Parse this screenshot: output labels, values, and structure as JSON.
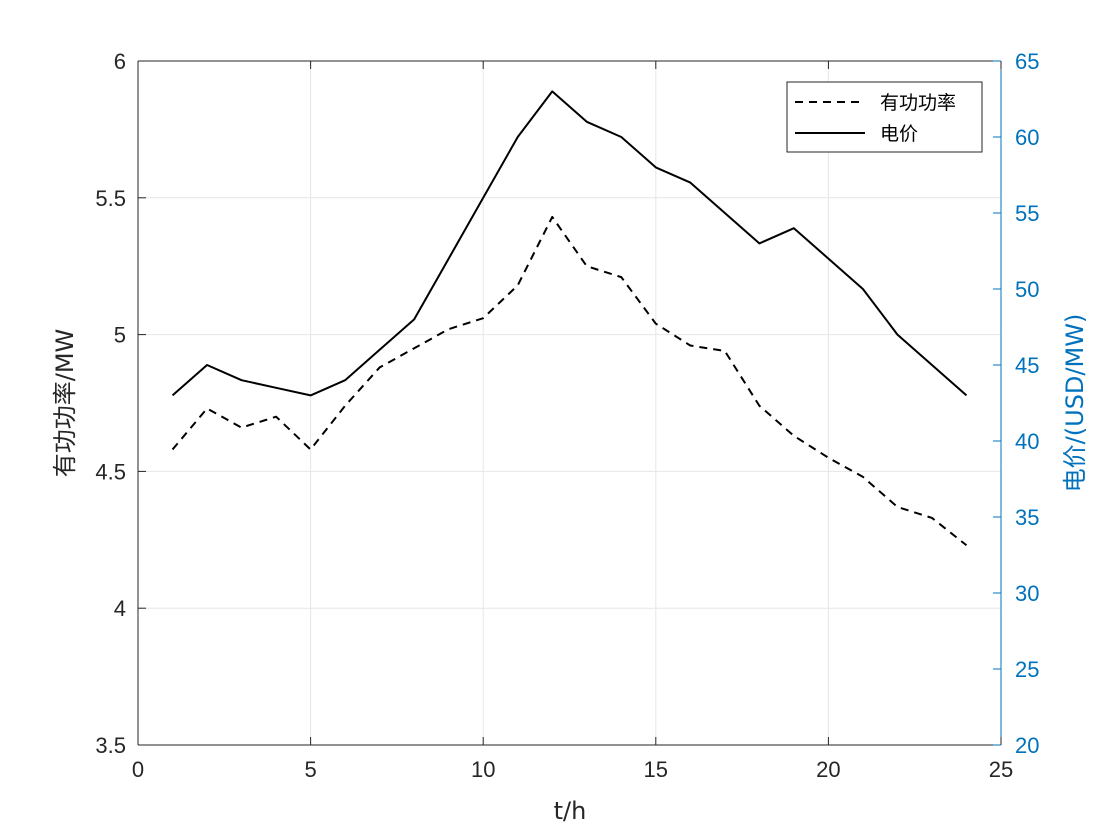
{
  "chart_data": {
    "type": "line",
    "title": "",
    "xlabel": "t/h",
    "ylabel_left": "有功功率/MW",
    "ylabel_right": "电价/(USD/MW)",
    "xlim": [
      0,
      25
    ],
    "ylim_left": [
      3.5,
      6
    ],
    "ylim_right": [
      20,
      65
    ],
    "xticks": [
      0,
      5,
      10,
      15,
      20,
      25
    ],
    "yticks_left": [
      3.5,
      4,
      4.5,
      5,
      5.5,
      6
    ],
    "yticks_right": [
      20,
      25,
      30,
      35,
      40,
      45,
      50,
      55,
      60,
      65
    ],
    "grid": true,
    "legend_position": "top-right",
    "colors": {
      "left_axis": "#000000",
      "right_axis": "#0072BD",
      "grid": "#e6e6e6"
    },
    "x": [
      1,
      2,
      3,
      4,
      5,
      6,
      7,
      8,
      9,
      10,
      11,
      12,
      13,
      14,
      15,
      16,
      17,
      18,
      19,
      20,
      21,
      22,
      23,
      24
    ],
    "series": [
      {
        "name": "有功功率",
        "axis": "left",
        "style": "dashed",
        "values": [
          4.58,
          4.73,
          4.66,
          4.7,
          4.58,
          4.74,
          4.88,
          4.95,
          5.02,
          5.06,
          5.18,
          5.43,
          5.25,
          5.21,
          5.04,
          4.96,
          4.94,
          4.74,
          4.63,
          4.55,
          4.48,
          4.37,
          4.33,
          4.23
        ]
      },
      {
        "name": "电价",
        "axis": "right",
        "style": "solid",
        "values": [
          43,
          45,
          44,
          43.5,
          43,
          44,
          46,
          48,
          52,
          56,
          60,
          63,
          61,
          60,
          58,
          57,
          55,
          53,
          54,
          52,
          50,
          47,
          45,
          43
        ]
      }
    ]
  }
}
